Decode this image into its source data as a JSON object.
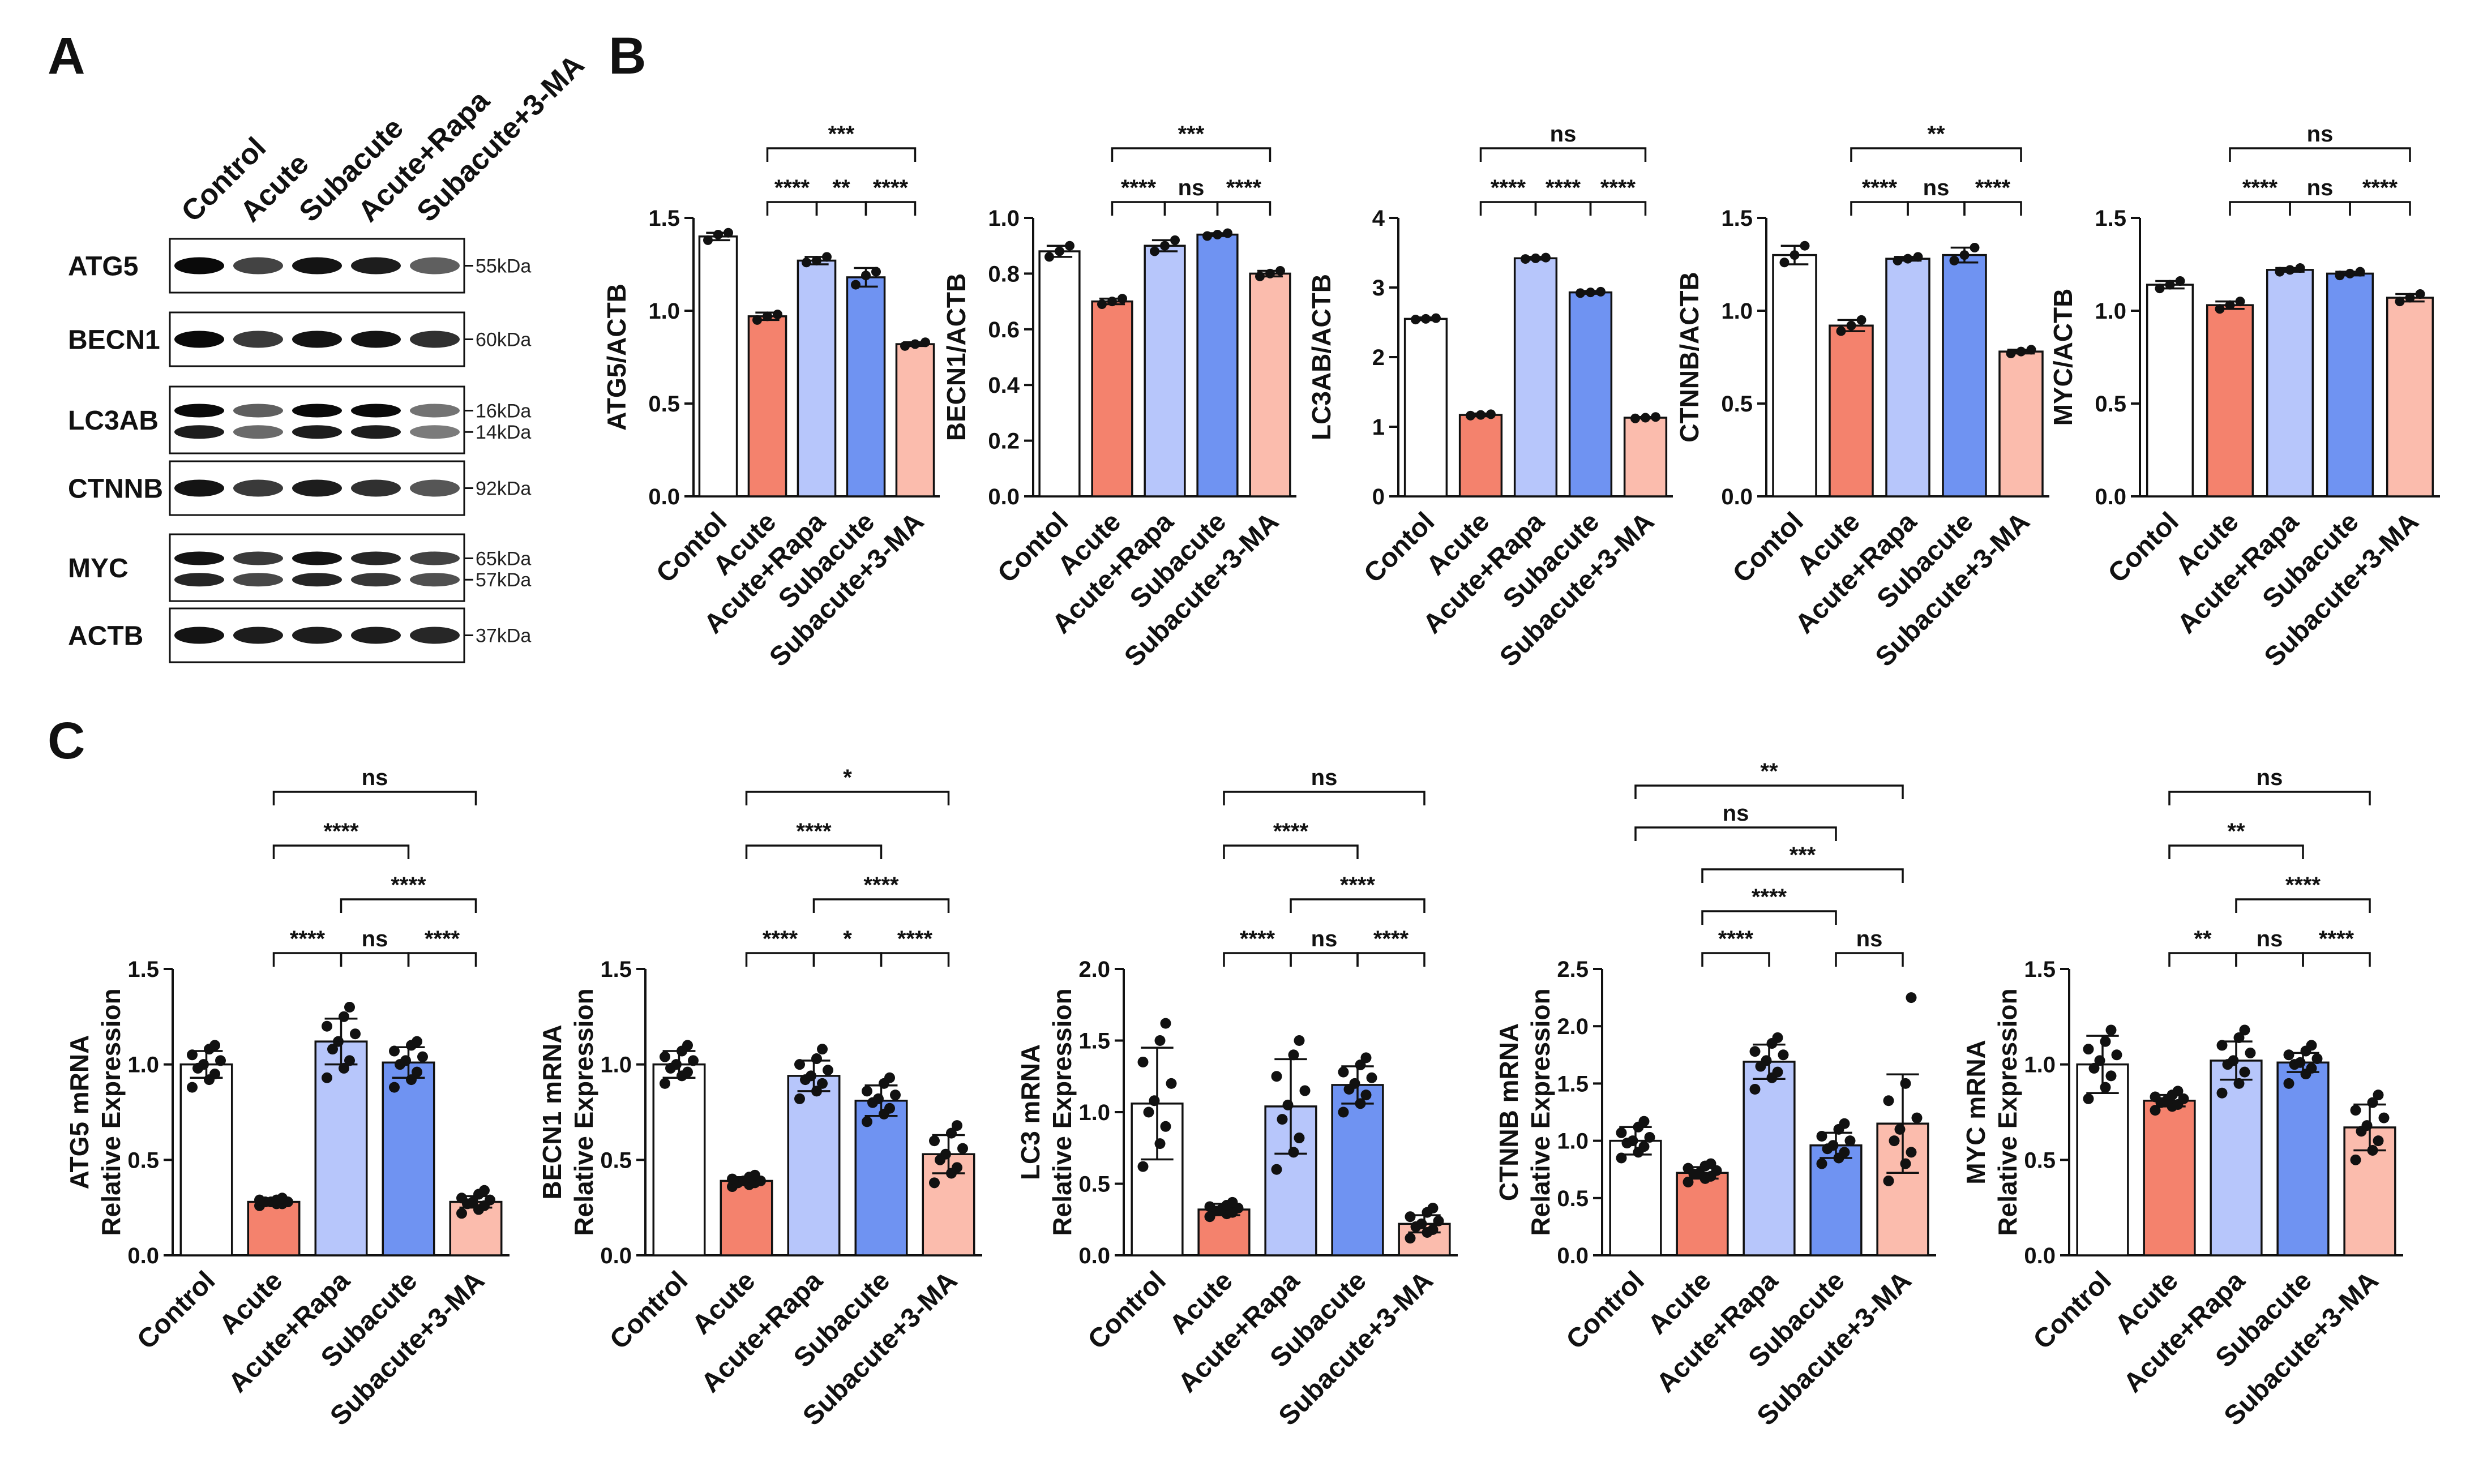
{
  "panels": {
    "A": "A",
    "B": "B",
    "C": "C"
  },
  "colors": {
    "Control": "#ffffff",
    "Acute": "#f4826d",
    "Acute+Rapa": "#b7c6fb",
    "Subacute": "#6f93f2",
    "Subacute+3-MA": "#fbbcad",
    "stroke": "#111111"
  },
  "western_blot": {
    "lanes": [
      "Control",
      "Acute",
      "Subacute",
      "Acute+Rapa",
      "Subacute+3-MA"
    ],
    "rows": [
      {
        "label": "ATG5",
        "markers": [
          "55kDa"
        ],
        "intensity": [
          1.0,
          0.7,
          0.95,
          0.9,
          0.55
        ],
        "double": false
      },
      {
        "label": "BECN1",
        "markers": [
          "60kDa"
        ],
        "intensity": [
          1.0,
          0.75,
          0.95,
          0.95,
          0.8
        ],
        "double": false
      },
      {
        "label": "LC3AB",
        "markers": [
          "16kDa",
          "14kDa"
        ],
        "intensity": [
          1.0,
          0.55,
          1.0,
          1.0,
          0.45
        ],
        "double": true
      },
      {
        "label": "CTNNB",
        "markers": [
          "92kDa"
        ],
        "intensity": [
          0.95,
          0.75,
          0.9,
          0.8,
          0.6
        ],
        "double": false
      },
      {
        "label": "MYC",
        "markers": [
          "65kDa",
          "57kDa"
        ],
        "intensity": [
          0.95,
          0.75,
          0.95,
          0.85,
          0.7
        ],
        "double": true
      },
      {
        "label": "ACTB",
        "markers": [
          "37kDa"
        ],
        "intensity": [
          0.95,
          0.9,
          0.9,
          0.9,
          0.85
        ],
        "double": false
      }
    ]
  },
  "chart_data": [
    {
      "panel": "B",
      "type": "bar",
      "title": "",
      "ylabel": "ATG5/ACTB",
      "ylim": [
        0,
        1.5
      ],
      "yticks": [
        "0.0",
        "0.5",
        "1.0",
        "1.5"
      ],
      "categories": [
        "Contol",
        "Acute",
        "Acute+Rapa",
        "Subacute",
        "Subacute+3-MA"
      ],
      "values": [
        1.4,
        0.97,
        1.27,
        1.18,
        0.82
      ],
      "errors": [
        0.02,
        0.02,
        0.02,
        0.05,
        0.01
      ],
      "points": [
        [
          1.38,
          1.41,
          1.42
        ],
        [
          0.95,
          0.97,
          0.98
        ],
        [
          1.26,
          1.27,
          1.29
        ],
        [
          1.14,
          1.19,
          1.21
        ],
        [
          0.81,
          0.82,
          0.83
        ]
      ],
      "comparisons": [
        {
          "a": 1,
          "b": 4,
          "label": "***"
        },
        {
          "a": 2,
          "b": 3,
          "label": "**"
        },
        {
          "a": 1,
          "b": 2,
          "label": "****"
        },
        {
          "a": 3,
          "b": 4,
          "label": "****"
        }
      ]
    },
    {
      "panel": "B",
      "type": "bar",
      "title": "",
      "ylabel": "BECN1/ACTB",
      "ylim": [
        0,
        1.0
      ],
      "yticks": [
        "0.0",
        "0.2",
        "0.4",
        "0.6",
        "0.8",
        "1.0"
      ],
      "categories": [
        "Contol",
        "Acute",
        "Acute+Rapa",
        "Subacute",
        "Subacute+3-MA"
      ],
      "values": [
        0.88,
        0.7,
        0.9,
        0.94,
        0.8
      ],
      "errors": [
        0.02,
        0.01,
        0.02,
        0.005,
        0.01
      ],
      "points": [
        [
          0.86,
          0.88,
          0.9
        ],
        [
          0.69,
          0.7,
          0.71
        ],
        [
          0.88,
          0.9,
          0.92
        ],
        [
          0.935,
          0.94,
          0.945
        ],
        [
          0.79,
          0.8,
          0.81
        ]
      ],
      "comparisons": [
        {
          "a": 1,
          "b": 4,
          "label": "***"
        },
        {
          "a": 2,
          "b": 3,
          "label": "ns"
        },
        {
          "a": 1,
          "b": 2,
          "label": "****"
        },
        {
          "a": 3,
          "b": 4,
          "label": "****"
        }
      ]
    },
    {
      "panel": "B",
      "type": "bar",
      "title": "",
      "ylabel": "LC3AB/ACTB",
      "ylim": [
        0,
        4
      ],
      "yticks": [
        "0",
        "1",
        "2",
        "3",
        "4"
      ],
      "categories": [
        "Contol",
        "Acute",
        "Acute+Rapa",
        "Subacute",
        "Subacute+3-MA"
      ],
      "values": [
        2.55,
        1.17,
        3.42,
        2.93,
        1.13
      ],
      "errors": [
        0.02,
        0.02,
        0.02,
        0.02,
        0.01
      ],
      "points": [
        [
          2.54,
          2.55,
          2.56
        ],
        [
          1.16,
          1.17,
          1.18
        ],
        [
          3.41,
          3.42,
          3.43
        ],
        [
          2.92,
          2.93,
          2.94
        ],
        [
          1.12,
          1.13,
          1.14
        ]
      ],
      "comparisons": [
        {
          "a": 1,
          "b": 4,
          "label": "ns"
        },
        {
          "a": 2,
          "b": 3,
          "label": "****"
        },
        {
          "a": 1,
          "b": 2,
          "label": "****"
        },
        {
          "a": 3,
          "b": 4,
          "label": "****"
        }
      ]
    },
    {
      "panel": "B",
      "type": "bar",
      "title": "",
      "ylabel": "CTNNB/ACTB",
      "ylim": [
        0,
        1.5
      ],
      "yticks": [
        "0.0",
        "0.5",
        "1.0",
        "1.5"
      ],
      "categories": [
        "Contol",
        "Acute",
        "Acute+Rapa",
        "Subacute",
        "Subacute+3-MA"
      ],
      "values": [
        1.3,
        0.92,
        1.28,
        1.3,
        0.78
      ],
      "errors": [
        0.05,
        0.03,
        0.01,
        0.04,
        0.01
      ],
      "points": [
        [
          1.26,
          1.3,
          1.35
        ],
        [
          0.89,
          0.92,
          0.95
        ],
        [
          1.27,
          1.28,
          1.29
        ],
        [
          1.27,
          1.3,
          1.34
        ],
        [
          0.77,
          0.78,
          0.79
        ]
      ],
      "comparisons": [
        {
          "a": 1,
          "b": 4,
          "label": "**"
        },
        {
          "a": 2,
          "b": 3,
          "label": "ns"
        },
        {
          "a": 1,
          "b": 2,
          "label": "****"
        },
        {
          "a": 3,
          "b": 4,
          "label": "****"
        }
      ]
    },
    {
      "panel": "B",
      "type": "bar",
      "title": "",
      "ylabel": "MYC/ACTB",
      "ylim": [
        0,
        1.5
      ],
      "yticks": [
        "0.0",
        "0.5",
        "1.0",
        "1.5"
      ],
      "categories": [
        "Contol",
        "Acute",
        "Acute+Rapa",
        "Subacute",
        "Subacute+3-MA"
      ],
      "values": [
        1.14,
        1.03,
        1.22,
        1.2,
        1.07
      ],
      "errors": [
        0.02,
        0.02,
        0.01,
        0.01,
        0.02
      ],
      "points": [
        [
          1.12,
          1.14,
          1.16
        ],
        [
          1.01,
          1.03,
          1.05
        ],
        [
          1.21,
          1.22,
          1.23
        ],
        [
          1.19,
          1.2,
          1.21
        ],
        [
          1.05,
          1.07,
          1.09
        ]
      ],
      "comparisons": [
        {
          "a": 1,
          "b": 4,
          "label": "ns"
        },
        {
          "a": 2,
          "b": 3,
          "label": "ns"
        },
        {
          "a": 1,
          "b": 2,
          "label": "****"
        },
        {
          "a": 3,
          "b": 4,
          "label": "****"
        }
      ]
    },
    {
      "panel": "C",
      "type": "bar",
      "title": "",
      "ylabel": "ATG5 mRNA\nRelative Expression",
      "ylim": [
        0,
        1.5
      ],
      "yticks": [
        "0.0",
        "0.5",
        "1.0",
        "1.5"
      ],
      "categories": [
        "Control",
        "Acute",
        "Acute+Rapa",
        "Subacute",
        "Subacute+3-MA"
      ],
      "values": [
        1.0,
        0.28,
        1.12,
        1.01,
        0.28
      ],
      "errors": [
        0.07,
        0.01,
        0.12,
        0.08,
        0.03
      ],
      "points": [
        [
          0.88,
          0.92,
          0.95,
          0.98,
          1.0,
          1.02,
          1.05,
          1.08,
          1.1
        ],
        [
          0.26,
          0.27,
          0.27,
          0.28,
          0.28,
          0.28,
          0.29,
          0.29,
          0.3
        ],
        [
          0.93,
          0.98,
          1.02,
          1.08,
          1.12,
          1.16,
          1.2,
          1.25,
          1.3
        ],
        [
          0.88,
          0.92,
          0.96,
          1.0,
          1.02,
          1.04,
          1.07,
          1.1,
          1.12
        ],
        [
          0.22,
          0.24,
          0.26,
          0.27,
          0.28,
          0.29,
          0.3,
          0.32,
          0.34
        ]
      ],
      "comparisons": [
        {
          "a": 1,
          "b": 4,
          "label": "ns"
        },
        {
          "a": 2,
          "b": 4,
          "label": "****"
        },
        {
          "a": 1,
          "b": 3,
          "label": "****"
        },
        {
          "a": 3,
          "b": 4,
          "label": "****"
        },
        {
          "a": 1,
          "b": 2,
          "label": "****"
        },
        {
          "a": 2,
          "b": 3,
          "label": "ns"
        }
      ]
    },
    {
      "panel": "C",
      "type": "bar",
      "title": "",
      "ylabel": "BECN1 mRNA\nRelative Expression",
      "ylim": [
        0,
        1.5
      ],
      "yticks": [
        "0.0",
        "0.5",
        "1.0",
        "1.5"
      ],
      "categories": [
        "Control",
        "Acute",
        "Acute+Rapa",
        "Subacute",
        "Subacute+3-MA"
      ],
      "values": [
        1.0,
        0.39,
        0.94,
        0.81,
        0.53
      ],
      "errors": [
        0.07,
        0.02,
        0.08,
        0.08,
        0.1
      ],
      "points": [
        [
          0.9,
          0.94,
          0.96,
          0.98,
          1.0,
          1.02,
          1.04,
          1.07,
          1.1
        ],
        [
          0.36,
          0.37,
          0.38,
          0.38,
          0.39,
          0.39,
          0.4,
          0.41,
          0.42
        ],
        [
          0.82,
          0.86,
          0.9,
          0.92,
          0.94,
          0.97,
          1.0,
          1.03,
          1.08
        ],
        [
          0.7,
          0.74,
          0.77,
          0.8,
          0.82,
          0.84,
          0.86,
          0.9,
          0.93
        ],
        [
          0.38,
          0.43,
          0.46,
          0.5,
          0.53,
          0.56,
          0.6,
          0.64,
          0.68
        ]
      ],
      "comparisons": [
        {
          "a": 1,
          "b": 4,
          "label": "*"
        },
        {
          "a": 2,
          "b": 4,
          "label": "****"
        },
        {
          "a": 1,
          "b": 3,
          "label": "****"
        },
        {
          "a": 1,
          "b": 2,
          "label": "****"
        },
        {
          "a": 2,
          "b": 3,
          "label": "*"
        },
        {
          "a": 3,
          "b": 4,
          "label": "****"
        }
      ]
    },
    {
      "panel": "C",
      "type": "bar",
      "title": "",
      "ylabel": "LC3 mRNA\nRelative Expression",
      "ylim": [
        0,
        2.0
      ],
      "yticks": [
        "0.0",
        "0.5",
        "1.0",
        "1.5",
        "2.0"
      ],
      "categories": [
        "Control",
        "Acute",
        "Acute+Rapa",
        "Subacute",
        "Subacute+3-MA"
      ],
      "values": [
        1.06,
        0.32,
        1.04,
        1.19,
        0.22
      ],
      "errors": [
        0.39,
        0.04,
        0.33,
        0.13,
        0.06
      ],
      "points": [
        [
          0.62,
          0.78,
          0.9,
          1.0,
          1.08,
          1.2,
          1.35,
          1.5,
          1.62
        ],
        [
          0.27,
          0.29,
          0.3,
          0.31,
          0.32,
          0.33,
          0.34,
          0.35,
          0.37
        ],
        [
          0.6,
          0.72,
          0.82,
          0.95,
          1.05,
          1.15,
          1.25,
          1.4,
          1.5
        ],
        [
          1.0,
          1.06,
          1.12,
          1.16,
          1.2,
          1.24,
          1.28,
          1.33,
          1.38
        ],
        [
          0.12,
          0.16,
          0.18,
          0.2,
          0.22,
          0.24,
          0.27,
          0.3,
          0.33
        ]
      ],
      "comparisons": [
        {
          "a": 1,
          "b": 4,
          "label": "ns"
        },
        {
          "a": 2,
          "b": 4,
          "label": "****"
        },
        {
          "a": 1,
          "b": 3,
          "label": "****"
        },
        {
          "a": 3,
          "b": 4,
          "label": "****"
        },
        {
          "a": 1,
          "b": 2,
          "label": "****"
        },
        {
          "a": 2,
          "b": 3,
          "label": "ns"
        }
      ]
    },
    {
      "panel": "C",
      "type": "bar",
      "title": "",
      "ylabel": "CTNNB mRNA\nRelative Expression",
      "ylim": [
        0,
        2.5
      ],
      "yticks": [
        "0.0",
        "0.5",
        "1.0",
        "1.5",
        "2.0",
        "2.5"
      ],
      "categories": [
        "Control",
        "Acute",
        "Acute+Rapa",
        "Subacute",
        "Subacute+3-MA"
      ],
      "values": [
        1.0,
        0.72,
        1.69,
        0.96,
        1.15
      ],
      "errors": [
        0.12,
        0.05,
        0.15,
        0.11,
        0.43
      ],
      "points": [
        [
          0.85,
          0.9,
          0.95,
          0.98,
          1.0,
          1.03,
          1.07,
          1.12,
          1.17
        ],
        [
          0.64,
          0.67,
          0.69,
          0.71,
          0.72,
          0.74,
          0.76,
          0.78,
          0.8
        ],
        [
          1.45,
          1.55,
          1.6,
          1.65,
          1.7,
          1.75,
          1.78,
          1.85,
          1.9
        ],
        [
          0.8,
          0.85,
          0.9,
          0.93,
          0.96,
          1.0,
          1.04,
          1.1,
          1.15
        ],
        [
          0.65,
          0.8,
          0.9,
          1.0,
          1.1,
          1.2,
          1.35,
          1.5,
          2.25
        ]
      ],
      "comparisons": [
        {
          "a": 0,
          "b": 4,
          "label": "**"
        },
        {
          "a": 1,
          "b": 4,
          "label": "***"
        },
        {
          "a": 0,
          "b": 3,
          "label": "ns"
        },
        {
          "a": 1,
          "b": 3,
          "label": "****"
        },
        {
          "a": 1,
          "b": 2,
          "label": "****"
        },
        {
          "a": 3,
          "b": 4,
          "label": "ns"
        }
      ]
    },
    {
      "panel": "C",
      "type": "bar",
      "title": "",
      "ylabel": "MYC mRNA\nRelative Expression",
      "ylim": [
        0,
        1.5
      ],
      "yticks": [
        "0.0",
        "0.5",
        "1.0",
        "1.5"
      ],
      "categories": [
        "Control",
        "Acute",
        "Acute+Rapa",
        "Subacute",
        "Subacute+3-MA"
      ],
      "values": [
        1.0,
        0.81,
        1.02,
        1.01,
        0.67
      ],
      "errors": [
        0.15,
        0.03,
        0.1,
        0.05,
        0.12
      ],
      "points": [
        [
          0.82,
          0.88,
          0.94,
          0.98,
          1.02,
          1.05,
          1.08,
          1.12,
          1.18
        ],
        [
          0.76,
          0.78,
          0.79,
          0.8,
          0.81,
          0.82,
          0.83,
          0.84,
          0.86
        ],
        [
          0.85,
          0.9,
          0.96,
          1.0,
          1.02,
          1.06,
          1.1,
          1.14,
          1.18
        ],
        [
          0.9,
          0.95,
          0.98,
          1.0,
          1.01,
          1.03,
          1.05,
          1.07,
          1.1
        ],
        [
          0.5,
          0.55,
          0.6,
          0.65,
          0.68,
          0.72,
          0.76,
          0.8,
          0.84
        ]
      ],
      "comparisons": [
        {
          "a": 1,
          "b": 4,
          "label": "ns"
        },
        {
          "a": 2,
          "b": 4,
          "label": "****"
        },
        {
          "a": 1,
          "b": 3,
          "label": "**"
        },
        {
          "a": 3,
          "b": 4,
          "label": "****"
        },
        {
          "a": 1,
          "b": 2,
          "label": "**"
        },
        {
          "a": 2,
          "b": 3,
          "label": "ns"
        }
      ]
    }
  ]
}
